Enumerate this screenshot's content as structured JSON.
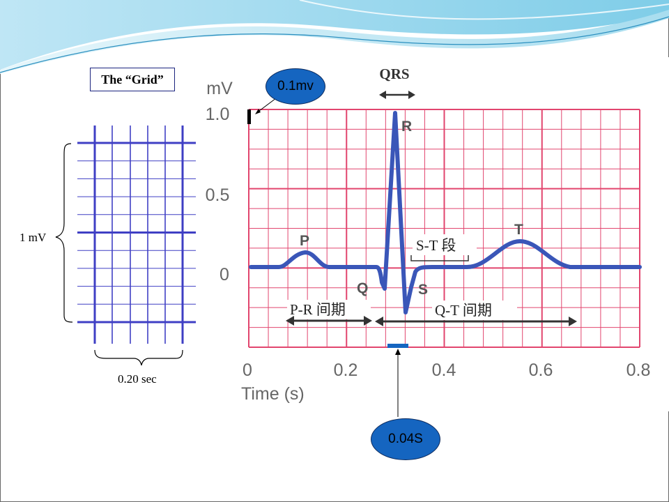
{
  "slide": {
    "grid_box_title": "The “Grid”",
    "grid_vertical_label": "1 mV",
    "grid_horizontal_label": "0.20 sec"
  },
  "ecg": {
    "y_unit": "mV",
    "y_ticks": [
      "1.0",
      "0.5",
      "0"
    ],
    "x_ticks": [
      "0",
      "0.2",
      "0.4",
      "0.6",
      "0.8"
    ],
    "x_axis_label": "Time (s)",
    "wave_labels": {
      "p": "P",
      "q": "Q",
      "r": "R",
      "s": "S",
      "t": "T"
    },
    "qrs_label": "QRS",
    "st_label": "S-T 段",
    "pr_label": "P-R 间期",
    "qt_label": "Q-T 间期",
    "colors": {
      "grid": "#e2456e",
      "trace": "#3a56b8",
      "callout": "#1565c0",
      "small_grid": "#3f3fc4"
    }
  },
  "callouts": {
    "amplitude": "0.1mv",
    "time": "0.04S"
  }
}
